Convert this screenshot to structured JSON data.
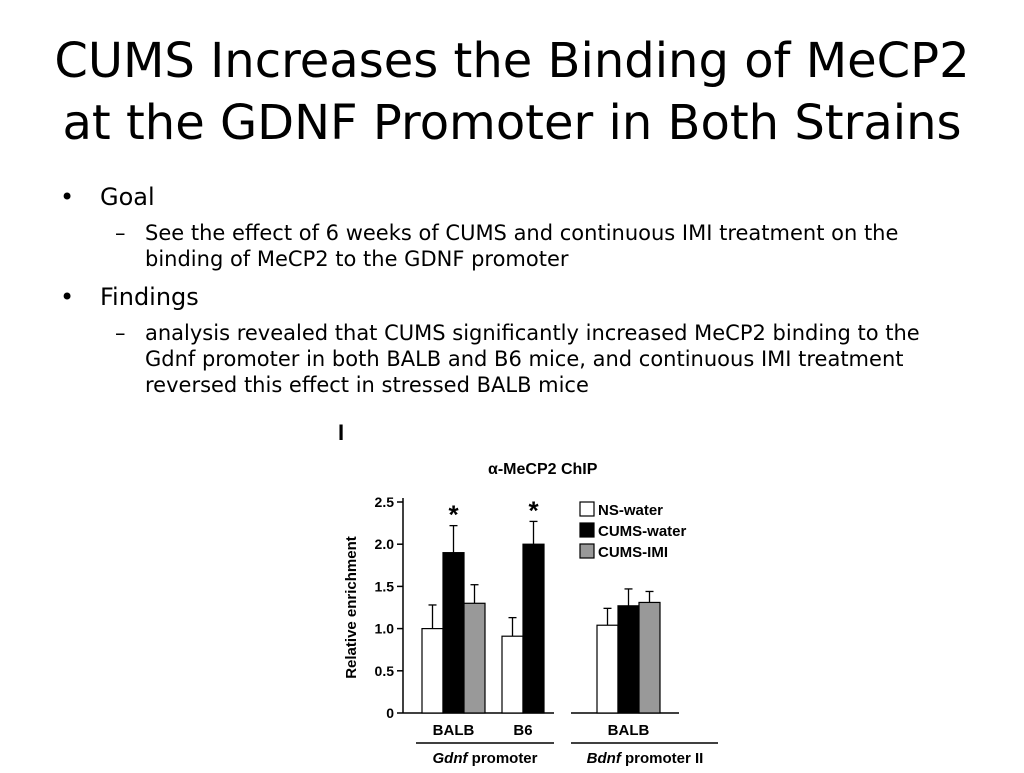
{
  "slide": {
    "title_line1": "CUMS Increases the Binding of MeCP2",
    "title_line2": "at the GDNF Promoter in Both Strains",
    "bullets": [
      {
        "label": "Goal",
        "sub": "See the effect of 6 weeks of CUMS and continuous IMI treatment on the binding of MeCP2 to the GDNF promoter"
      },
      {
        "label": "Findings",
        "sub": "analysis revealed that CUMS significantly increased MeCP2 binding to the Gdnf promoter in both BALB and B6 mice, and continuous IMI treatment reversed this effect in stressed BALB mice"
      }
    ]
  },
  "chart_data": {
    "type": "bar",
    "panel_label": "I",
    "title": "α-MeCP2 ChIP",
    "ylabel": "Relative enrichment",
    "ylim": [
      0,
      2.5
    ],
    "yticks": [
      "0",
      "0.5",
      "1.0",
      "1.5",
      "2.0",
      "2.5"
    ],
    "categories": [
      "BALB",
      "B6",
      "BALB"
    ],
    "groups": [
      "Gdnf promoter",
      "Bdnf promoter II"
    ],
    "group_labels": [
      {
        "italic": "Gdnf",
        "rest": " promoter"
      },
      {
        "italic": "Bdnf",
        "rest": " promoter II"
      }
    ],
    "series": [
      {
        "name": "NS-water",
        "color": "#ffffff",
        "values": [
          1.0,
          0.91,
          1.04
        ],
        "errors": [
          0.28,
          0.22,
          0.2
        ]
      },
      {
        "name": "CUMS-water",
        "color": "#000000",
        "values": [
          1.9,
          2.0,
          1.27
        ],
        "errors": [
          0.32,
          0.27,
          0.2
        ]
      },
      {
        "name": "CUMS-IMI",
        "color": "#999999",
        "values": [
          1.3,
          null,
          1.31
        ],
        "errors": [
          0.22,
          null,
          0.13
        ]
      }
    ],
    "significance": [
      {
        "category_index": 0,
        "series_index": 1,
        "mark": "*"
      },
      {
        "category_index": 1,
        "series_index": 1,
        "mark": "*"
      }
    ],
    "legend_position": "top-right",
    "grid": false
  }
}
